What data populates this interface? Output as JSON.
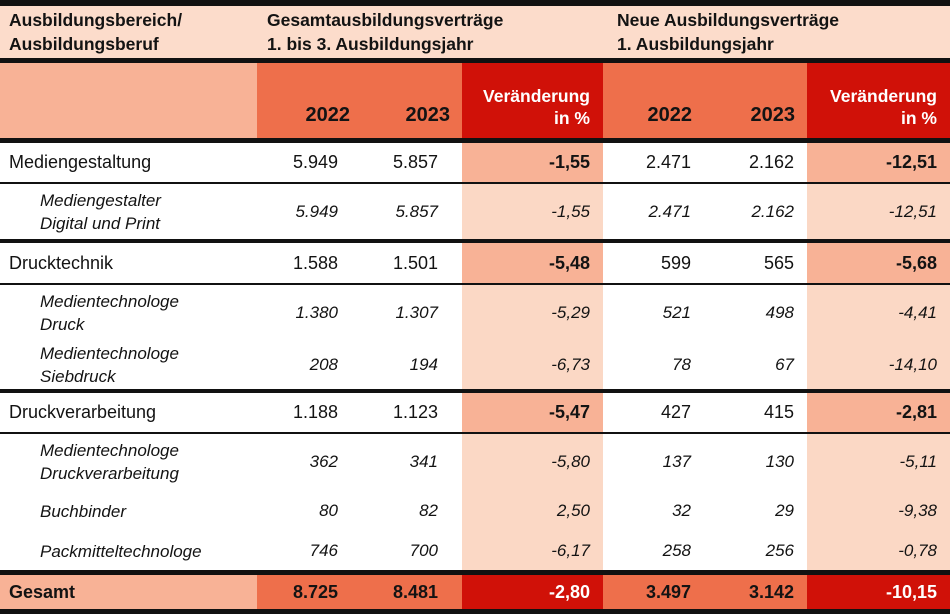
{
  "header": {
    "col1_lines": [
      "Ausbildungsbereich/",
      "Ausbildungsberuf"
    ],
    "group1_lines": [
      "Gesamtausbildungsverträge",
      "1. bis 3. Ausbildungsjahr"
    ],
    "group2_lines": [
      "Neue Ausbildungsverträge",
      "1. Ausbildungsjahr"
    ],
    "year_2022": "2022",
    "year_2023": "2023",
    "change_lines": [
      "Veränderung",
      "in %"
    ]
  },
  "rows": [
    {
      "type": "main",
      "label_lines": [
        "Mediengestaltung"
      ],
      "gesamt": {
        "y2022": "5.949",
        "y2023": "5.857",
        "change": "-1,55"
      },
      "neue": {
        "y2022": "2.471",
        "y2023": "2.162",
        "change": "-12,51"
      }
    },
    {
      "type": "sub",
      "label_lines": [
        "Mediengestalter",
        "Digital und Print"
      ],
      "gesamt": {
        "y2022": "5.949",
        "y2023": "5.857",
        "change": "-1,55"
      },
      "neue": {
        "y2022": "2.471",
        "y2023": "2.162",
        "change": "-12,51"
      }
    },
    {
      "type": "main",
      "label_lines": [
        "Drucktechnik"
      ],
      "gesamt": {
        "y2022": "1.588",
        "y2023": "1.501",
        "change": "-5,48"
      },
      "neue": {
        "y2022": "599",
        "y2023": "565",
        "change": "-5,68"
      }
    },
    {
      "type": "sub",
      "label_lines": [
        "Medientechnologe",
        "Druck"
      ],
      "gesamt": {
        "y2022": "1.380",
        "y2023": "1.307",
        "change": "-5,29"
      },
      "neue": {
        "y2022": "521",
        "y2023": "498",
        "change": "-4,41"
      }
    },
    {
      "type": "sub",
      "label_lines": [
        "Medientechnologe",
        "Siebdruck"
      ],
      "gesamt": {
        "y2022": "208",
        "y2023": "194",
        "change": "-6,73"
      },
      "neue": {
        "y2022": "78",
        "y2023": "67",
        "change": "-14,10"
      }
    },
    {
      "type": "main",
      "label_lines": [
        "Druckverarbeitung"
      ],
      "gesamt": {
        "y2022": "1.188",
        "y2023": "1.123",
        "change": "-5,47"
      },
      "neue": {
        "y2022": "427",
        "y2023": "415",
        "change": "-2,81"
      }
    },
    {
      "type": "sub",
      "label_lines": [
        "Medientechnologe",
        "Druckverarbeitung"
      ],
      "gesamt": {
        "y2022": "362",
        "y2023": "341",
        "change": "-5,80"
      },
      "neue": {
        "y2022": "137",
        "y2023": "130",
        "change": "-5,11"
      }
    },
    {
      "type": "sub",
      "label_lines": [
        "Buchbinder"
      ],
      "gesamt": {
        "y2022": "80",
        "y2023": "82",
        "change": "2,50"
      },
      "neue": {
        "y2022": "32",
        "y2023": "29",
        "change": "-9,38"
      }
    },
    {
      "type": "sub",
      "label_lines": [
        "Packmitteltechnologe"
      ],
      "gesamt": {
        "y2022": "746",
        "y2023": "700",
        "change": "-6,17"
      },
      "neue": {
        "y2022": "258",
        "y2023": "256",
        "change": "-0,78"
      }
    }
  ],
  "total": {
    "label": "Gesamt",
    "gesamt": {
      "y2022": "8.725",
      "y2023": "8.481",
      "change": "-2,80"
    },
    "neue": {
      "y2022": "3.497",
      "y2023": "3.142",
      "change": "-10,15"
    }
  },
  "colors": {
    "peach": "#fcdccb",
    "subpeach": "#fbd8c5",
    "salmon": "#f8b296",
    "orange": "#ee6f4b",
    "red": "#d01108",
    "line": "#111111",
    "ink": "#131313"
  },
  "chart_data": {
    "type": "table",
    "title": "Ausbildungsverträge nach Ausbildungsbereich/Ausbildungsberuf",
    "columns": [
      "Ausbildungsbereich/Ausbildungsberuf",
      "Gesamtausbildungsverträge 1. bis 3. Ausbildungsjahr 2022",
      "Gesamtausbildungsverträge 1. bis 3. Ausbildungsjahr 2023",
      "Gesamtausbildungsverträge Veränderung in %",
      "Neue Ausbildungsverträge 1. Ausbildungsjahr 2022",
      "Neue Ausbildungsverträge 1. Ausbildungsjahr 2023",
      "Neue Ausbildungsverträge Veränderung in %"
    ],
    "rows": [
      [
        "Mediengestaltung",
        5949,
        5857,
        -1.55,
        2471,
        2162,
        -12.51
      ],
      [
        "Mediengestalter Digital und Print",
        5949,
        5857,
        -1.55,
        2471,
        2162,
        -12.51
      ],
      [
        "Drucktechnik",
        1588,
        1501,
        -5.48,
        599,
        565,
        -5.68
      ],
      [
        "Medientechnologe Druck",
        1380,
        1307,
        -5.29,
        521,
        498,
        -4.41
      ],
      [
        "Medientechnologe Siebdruck",
        208,
        194,
        -6.73,
        78,
        67,
        -14.1
      ],
      [
        "Druckverarbeitung",
        1188,
        1123,
        -5.47,
        427,
        415,
        -2.81
      ],
      [
        "Medientechnologe Druckverarbeitung",
        362,
        341,
        -5.8,
        137,
        130,
        -5.11
      ],
      [
        "Buchbinder",
        80,
        82,
        2.5,
        32,
        29,
        -9.38
      ],
      [
        "Packmitteltechnologe",
        746,
        700,
        -6.17,
        258,
        256,
        -0.78
      ],
      [
        "Gesamt",
        8725,
        8481,
        -2.8,
        3497,
        3142,
        -10.15
      ]
    ]
  }
}
